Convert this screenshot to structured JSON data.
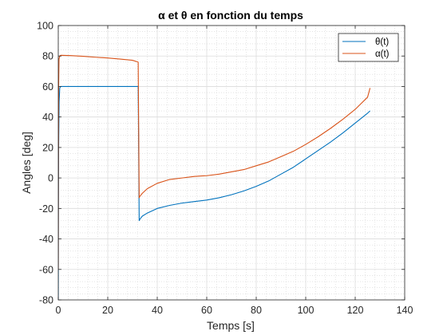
{
  "chart_data": {
    "type": "line",
    "title": "α et θ en fonction du temps",
    "xlabel": "Temps [s]",
    "ylabel": "Angles [deg]",
    "xlim": [
      0,
      140
    ],
    "ylim": [
      -80,
      100
    ],
    "xticks": [
      0,
      20,
      40,
      60,
      80,
      100,
      120,
      140
    ],
    "yticks": [
      -80,
      -60,
      -40,
      -20,
      0,
      20,
      40,
      60,
      80,
      100
    ],
    "grid": true,
    "minor_grid": true,
    "legend_position": "top-right",
    "series": [
      {
        "name": "θ(t)",
        "color": "#0072BD",
        "x": [
          0,
          0.05,
          0.15,
          0.35,
          0.6,
          1,
          5,
          10,
          15,
          20,
          25,
          30,
          32.3,
          32.7,
          33,
          34,
          36,
          40,
          45,
          50,
          55,
          60,
          65,
          70,
          75,
          80,
          85,
          90,
          95,
          100,
          105,
          110,
          115,
          120,
          125,
          126
        ],
        "y": [
          -80,
          -30,
          20,
          50,
          59,
          60,
          60,
          60,
          60,
          60,
          60,
          60,
          60,
          -28,
          -27,
          -25,
          -23,
          -20,
          -18,
          -16.5,
          -15.5,
          -14.5,
          -13,
          -11,
          -8.5,
          -5.5,
          -2,
          2.5,
          7,
          12.5,
          18,
          23.5,
          29.5,
          36,
          42.5,
          44
        ]
      },
      {
        "name": "α(t)",
        "color": "#D95319",
        "x": [
          0,
          0.05,
          0.15,
          0.3,
          0.6,
          1,
          5,
          10,
          15,
          20,
          25,
          30,
          32.3,
          32.7,
          33,
          34,
          36,
          40,
          45,
          50,
          55,
          60,
          65,
          70,
          75,
          80,
          85,
          90,
          95,
          100,
          105,
          110,
          115,
          120,
          125,
          126
        ],
        "y": [
          -60,
          10,
          60,
          78,
          80,
          80.5,
          80.3,
          79.8,
          79.2,
          78.7,
          78,
          77.2,
          76,
          -13,
          -12,
          -10,
          -7,
          -3.5,
          -1,
          0,
          1,
          1.5,
          2.5,
          4,
          5.5,
          8,
          10.5,
          14,
          17.5,
          22,
          27,
          32.5,
          38.5,
          45,
          53,
          59
        ]
      }
    ]
  }
}
